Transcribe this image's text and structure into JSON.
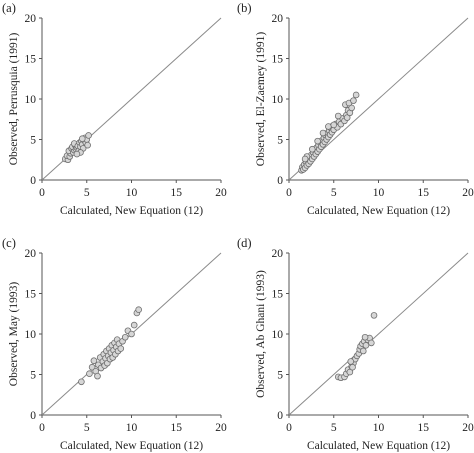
{
  "chart_data": [
    {
      "type": "scatter",
      "panel_label": "(a)",
      "xlabel": "Calculated, New Equation (12)",
      "ylabel": "Observed, Perrusquia (1991)",
      "xlim": [
        0,
        20
      ],
      "ylim": [
        0,
        20
      ],
      "xticks": [
        0,
        5,
        10,
        15,
        20
      ],
      "yticks": [
        0,
        5,
        10,
        15,
        20
      ],
      "identity_line": true,
      "grid": false,
      "points": [
        [
          2.6,
          2.6
        ],
        [
          2.9,
          2.5
        ],
        [
          2.8,
          3.0
        ],
        [
          3.1,
          2.9
        ],
        [
          3.2,
          3.3
        ],
        [
          3.0,
          3.6
        ],
        [
          3.3,
          3.9
        ],
        [
          3.5,
          3.4
        ],
        [
          3.6,
          3.7
        ],
        [
          3.4,
          4.1
        ],
        [
          3.7,
          4.3
        ],
        [
          3.8,
          3.8
        ],
        [
          3.9,
          4.0
        ],
        [
          3.6,
          4.5
        ],
        [
          4.0,
          4.2
        ],
        [
          4.1,
          3.6
        ],
        [
          4.2,
          4.6
        ],
        [
          4.3,
          4.1
        ],
        [
          4.4,
          4.8
        ],
        [
          4.5,
          4.4
        ],
        [
          4.6,
          3.9
        ],
        [
          4.7,
          4.9
        ],
        [
          4.8,
          5.2
        ],
        [
          4.9,
          4.6
        ],
        [
          5.0,
          5.0
        ],
        [
          5.1,
          4.3
        ],
        [
          5.2,
          5.5
        ],
        [
          4.3,
          3.4
        ],
        [
          3.9,
          3.2
        ],
        [
          4.5,
          5.1
        ]
      ]
    },
    {
      "type": "scatter",
      "panel_label": "(b)",
      "xlabel": "Calculated, New Equation (12)",
      "ylabel": "Observed, El-Zaemey (1991)",
      "xlim": [
        0,
        20
      ],
      "ylim": [
        0,
        20
      ],
      "xticks": [
        0,
        5,
        10,
        15,
        20
      ],
      "yticks": [
        0,
        5,
        10,
        15,
        20
      ],
      "identity_line": true,
      "grid": false,
      "points": [
        [
          1.4,
          1.2
        ],
        [
          1.5,
          1.6
        ],
        [
          1.6,
          1.3
        ],
        [
          1.7,
          1.9
        ],
        [
          1.8,
          1.5
        ],
        [
          1.9,
          2.2
        ],
        [
          2.0,
          1.8
        ],
        [
          2.1,
          2.5
        ],
        [
          2.2,
          2.0
        ],
        [
          2.3,
          2.8
        ],
        [
          2.4,
          2.3
        ],
        [
          2.5,
          3.1
        ],
        [
          2.6,
          2.6
        ],
        [
          2.7,
          3.4
        ],
        [
          2.8,
          2.9
        ],
        [
          2.9,
          3.7
        ],
        [
          3.0,
          3.2
        ],
        [
          3.1,
          4.0
        ],
        [
          3.2,
          3.5
        ],
        [
          3.3,
          4.3
        ],
        [
          3.4,
          3.8
        ],
        [
          3.5,
          4.6
        ],
        [
          3.6,
          4.1
        ],
        [
          3.7,
          4.9
        ],
        [
          3.8,
          4.4
        ],
        [
          3.9,
          5.2
        ],
        [
          4.0,
          4.7
        ],
        [
          4.1,
          5.5
        ],
        [
          4.2,
          5.0
        ],
        [
          4.3,
          5.8
        ],
        [
          4.4,
          5.3
        ],
        [
          4.5,
          6.1
        ],
        [
          4.6,
          5.6
        ],
        [
          4.7,
          6.4
        ],
        [
          4.8,
          5.9
        ],
        [
          4.9,
          6.7
        ],
        [
          5.0,
          6.2
        ],
        [
          5.2,
          6.9
        ],
        [
          5.4,
          6.5
        ],
        [
          5.6,
          7.2
        ],
        [
          5.8,
          6.9
        ],
        [
          6.0,
          7.6
        ],
        [
          6.2,
          7.3
        ],
        [
          6.4,
          8.0
        ],
        [
          6.5,
          7.7
        ],
        [
          6.6,
          8.6
        ],
        [
          6.8,
          8.3
        ],
        [
          7.0,
          8.9
        ],
        [
          6.3,
          9.3
        ],
        [
          6.7,
          9.5
        ],
        [
          7.2,
          9.8
        ],
        [
          7.5,
          10.5
        ],
        [
          2.0,
          2.9
        ],
        [
          2.6,
          3.8
        ],
        [
          3.2,
          4.8
        ],
        [
          3.8,
          5.8
        ],
        [
          4.4,
          6.6
        ],
        [
          1.8,
          2.6
        ],
        [
          5.5,
          7.9
        ],
        [
          5.0,
          6.8
        ]
      ]
    },
    {
      "type": "scatter",
      "panel_label": "(c)",
      "xlabel": "Calculated, New Equation (12)",
      "ylabel": "Observed, May (1993)",
      "xlim": [
        0,
        20
      ],
      "ylim": [
        0,
        20
      ],
      "xticks": [
        0,
        5,
        10,
        15,
        20
      ],
      "yticks": [
        0,
        5,
        10,
        15,
        20
      ],
      "identity_line": true,
      "grid": false,
      "points": [
        [
          4.4,
          4.1
        ],
        [
          5.3,
          5.1
        ],
        [
          5.6,
          5.9
        ],
        [
          5.8,
          6.7
        ],
        [
          6.0,
          5.4
        ],
        [
          6.3,
          6.2
        ],
        [
          6.5,
          7.1
        ],
        [
          6.6,
          5.8
        ],
        [
          6.8,
          6.6
        ],
        [
          6.9,
          7.5
        ],
        [
          7.0,
          6.1
        ],
        [
          7.1,
          7.0
        ],
        [
          7.2,
          7.9
        ],
        [
          7.3,
          6.4
        ],
        [
          7.4,
          7.3
        ],
        [
          7.5,
          8.2
        ],
        [
          7.6,
          6.9
        ],
        [
          7.7,
          7.7
        ],
        [
          7.8,
          8.6
        ],
        [
          7.9,
          7.1
        ],
        [
          8.0,
          8.0
        ],
        [
          8.1,
          8.9
        ],
        [
          8.2,
          7.5
        ],
        [
          8.3,
          8.4
        ],
        [
          8.4,
          9.3
        ],
        [
          8.5,
          7.9
        ],
        [
          8.6,
          8.8
        ],
        [
          8.8,
          8.2
        ],
        [
          9.0,
          9.1
        ],
        [
          9.3,
          9.6
        ],
        [
          9.6,
          10.4
        ],
        [
          10.0,
          10.0
        ],
        [
          10.3,
          11.1
        ],
        [
          10.6,
          12.6
        ],
        [
          10.8,
          13.0
        ],
        [
          6.2,
          4.8
        ]
      ]
    },
    {
      "type": "scatter",
      "panel_label": "(d)",
      "xlabel": "Calculated, New Equation (12)",
      "ylabel": "Observed, Ab Ghani (1993)",
      "xlim": [
        0,
        20
      ],
      "ylim": [
        0,
        20
      ],
      "xticks": [
        0,
        5,
        10,
        15,
        20
      ],
      "yticks": [
        0,
        5,
        10,
        15,
        20
      ],
      "identity_line": true,
      "grid": false,
      "points": [
        [
          5.5,
          4.7
        ],
        [
          5.8,
          4.6
        ],
        [
          6.2,
          4.7
        ],
        [
          6.4,
          5.1
        ],
        [
          6.6,
          5.6
        ],
        [
          6.8,
          5.3
        ],
        [
          7.0,
          6.0
        ],
        [
          7.2,
          6.4
        ],
        [
          7.4,
          6.9
        ],
        [
          7.6,
          7.3
        ],
        [
          7.8,
          7.6
        ],
        [
          7.9,
          8.1
        ],
        [
          8.0,
          8.5
        ],
        [
          8.2,
          8.8
        ],
        [
          8.3,
          7.9
        ],
        [
          8.4,
          9.1
        ],
        [
          8.6,
          8.6
        ],
        [
          8.8,
          9.3
        ],
        [
          9.0,
          9.5
        ],
        [
          9.2,
          8.9
        ],
        [
          9.5,
          12.3
        ],
        [
          7.1,
          5.9
        ],
        [
          6.9,
          6.6
        ],
        [
          8.5,
          9.6
        ]
      ]
    }
  ]
}
